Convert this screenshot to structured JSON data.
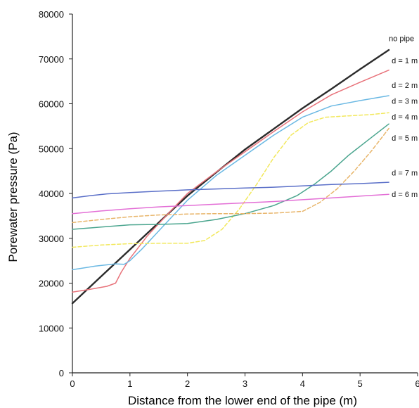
{
  "chart_data": {
    "type": "line",
    "xlabel": "Distance from the lower end of the pipe (m)",
    "ylabel": "Porewater pressure (Pa)",
    "xlim": [
      0,
      6
    ],
    "ylim": [
      0,
      80000
    ],
    "xticks": [
      "0",
      "1",
      "2",
      "3",
      "4",
      "5",
      "6"
    ],
    "yticks": [
      "0",
      "10000",
      "20000",
      "30000",
      "40000",
      "50000",
      "60000",
      "70000",
      "80000"
    ],
    "grid": false,
    "series": [
      {
        "name": "no pipe",
        "color": "#2b2b2b",
        "dash": false,
        "x": [
          0,
          0.5,
          1.0,
          1.5,
          2.0,
          2.5,
          3.0,
          3.5,
          4.0,
          4.5,
          5.0,
          5.5
        ],
        "y": [
          15500,
          21500,
          27500,
          33500,
          39500,
          44700,
          49800,
          54400,
          59000,
          63300,
          67700,
          72000
        ]
      },
      {
        "name": "d = 1 m",
        "color": "#e8737b",
        "dash": false,
        "x": [
          0,
          0.3,
          0.6,
          0.75,
          0.85,
          1.0,
          1.3,
          1.7,
          2.0,
          2.5,
          3.0,
          3.5,
          4.0,
          4.5,
          5.0,
          5.5
        ],
        "y": [
          18000,
          18600,
          19300,
          20000,
          22500,
          25500,
          30500,
          36000,
          40000,
          44800,
          49300,
          53800,
          58200,
          62000,
          64800,
          67500
        ]
      },
      {
        "name": "d = 2 m",
        "color": "#6ab8e3",
        "dash": false,
        "x": [
          0,
          0.4,
          0.75,
          0.9,
          1.0,
          1.2,
          1.6,
          2.0,
          2.5,
          3.0,
          3.5,
          4.0,
          4.5,
          5.0,
          5.5
        ],
        "y": [
          23000,
          23800,
          24300,
          24200,
          25000,
          27500,
          33000,
          38500,
          44000,
          48500,
          53000,
          57000,
          59500,
          60700,
          61800
        ]
      },
      {
        "name": "d = 3 m",
        "color": "#f2e85c",
        "dash": true,
        "x": [
          0,
          0.5,
          1.0,
          1.5,
          2.0,
          2.3,
          2.6,
          2.9,
          3.2,
          3.5,
          3.8,
          4.1,
          4.4,
          4.8,
          5.2,
          5.5
        ],
        "y": [
          28000,
          28500,
          28800,
          28900,
          28900,
          29500,
          32000,
          36500,
          42000,
          48000,
          53000,
          55800,
          57000,
          57300,
          57600,
          58000
        ]
      },
      {
        "name": "d = 4 m",
        "color": "#4aa58e",
        "dash": false,
        "x": [
          0,
          0.5,
          1.0,
          1.5,
          2.0,
          2.5,
          3.0,
          3.5,
          3.9,
          4.2,
          4.5,
          4.8,
          5.1,
          5.5
        ],
        "y": [
          32000,
          32500,
          33000,
          33100,
          33300,
          34200,
          35500,
          37300,
          39500,
          42000,
          45000,
          48500,
          51500,
          55500
        ]
      },
      {
        "name": "d = 5 m",
        "color": "#e8b56a",
        "dash": true,
        "x": [
          0,
          0.5,
          1.0,
          1.5,
          2.0,
          2.5,
          3.0,
          3.5,
          4.0,
          4.3,
          4.6,
          4.9,
          5.2,
          5.5
        ],
        "y": [
          33500,
          34200,
          34800,
          35200,
          35400,
          35500,
          35500,
          35600,
          36000,
          38000,
          41000,
          45000,
          49500,
          54500
        ]
      },
      {
        "name": "d = 7 m",
        "color": "#5a6fc8",
        "dash": false,
        "x": [
          0,
          0.3,
          0.6,
          1.0,
          1.5,
          2.0,
          2.5,
          3.0,
          3.5,
          4.0,
          4.5,
          5.0,
          5.5
        ],
        "y": [
          39000,
          39500,
          39900,
          40200,
          40500,
          40800,
          41000,
          41200,
          41400,
          41700,
          42000,
          42200,
          42500
        ]
      },
      {
        "name": "d = 6 m",
        "color": "#e36fd6",
        "dash": false,
        "x": [
          0,
          0.5,
          1.0,
          1.5,
          2.0,
          2.5,
          3.0,
          3.5,
          4.0,
          4.5,
          5.0,
          5.5
        ],
        "y": [
          35500,
          36100,
          36600,
          37000,
          37300,
          37600,
          37900,
          38200,
          38600,
          39000,
          39400,
          39800
        ]
      }
    ],
    "labels": [
      {
        "text": "no pipe",
        "x": 5.5,
        "y": 74000
      },
      {
        "text": "d = 1 m",
        "x": 5.55,
        "y": 69000
      },
      {
        "text": "d = 2 m",
        "x": 5.55,
        "y": 63500
      },
      {
        "text": "d = 3 m",
        "x": 5.55,
        "y": 60000
      },
      {
        "text": "d = 4 m",
        "x": 5.55,
        "y": 56500
      },
      {
        "text": "d = 5 m",
        "x": 5.55,
        "y": 51800
      },
      {
        "text": "d = 7 m",
        "x": 5.55,
        "y": 44000
      },
      {
        "text": "d = 6 m",
        "x": 5.55,
        "y": 39200
      }
    ]
  }
}
